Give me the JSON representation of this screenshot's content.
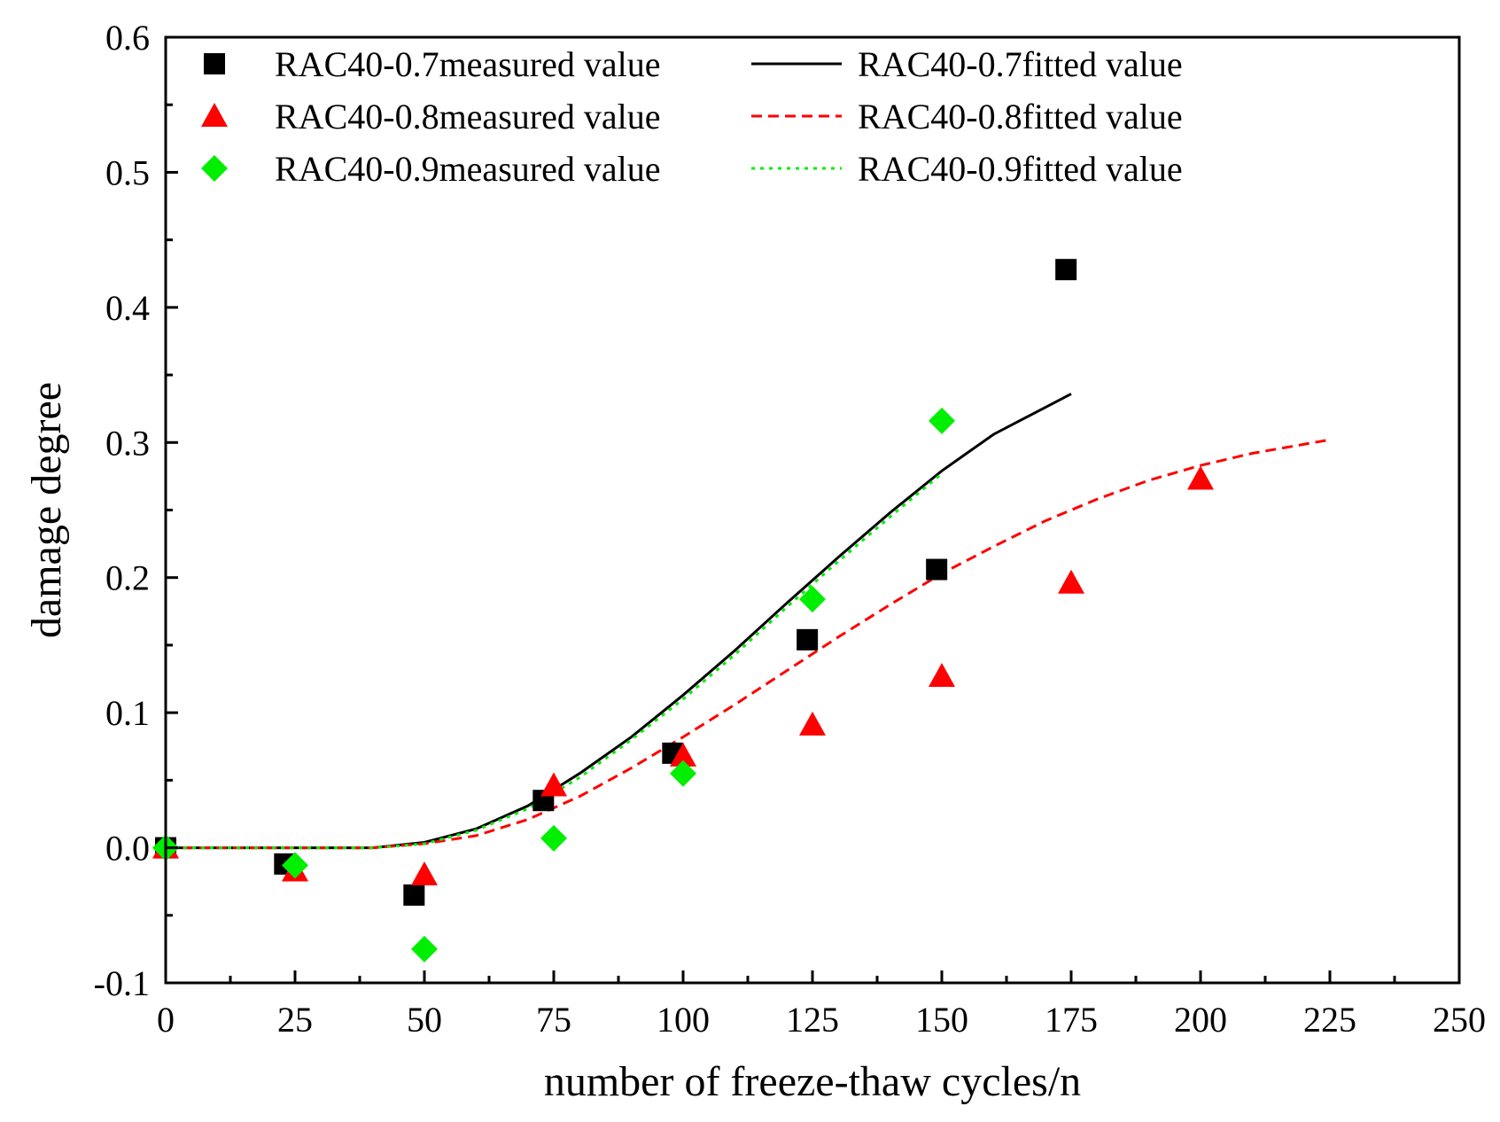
{
  "chart_data": {
    "type": "scatter",
    "title": "",
    "xlabel": "number of freeze-thaw cycles/n",
    "ylabel": "damage degree",
    "xlim": [
      0,
      250
    ],
    "ylim": [
      -0.1,
      0.6
    ],
    "xticks": [
      0,
      25,
      50,
      75,
      100,
      125,
      150,
      175,
      200,
      225,
      250
    ],
    "yticks": [
      -0.1,
      0.0,
      0.1,
      0.2,
      0.3,
      0.4,
      0.5,
      0.6
    ],
    "xtick_labels": [
      "0",
      "25",
      "50",
      "75",
      "100",
      "125",
      "150",
      "175",
      "200",
      "225",
      "250"
    ],
    "ytick_labels": [
      "-0.1",
      "0.0",
      "0.1",
      "0.2",
      "0.3",
      "0.4",
      "0.5",
      "0.6"
    ],
    "grid": false,
    "legend_position": "top-left",
    "series": [
      {
        "name": "RAC40-0.7measured value",
        "kind": "scatter",
        "marker": "square",
        "color": "#000000",
        "x": [
          0,
          23,
          48,
          73,
          98,
          124,
          149,
          174
        ],
        "y": [
          0.0,
          -0.012,
          -0.035,
          0.035,
          0.07,
          0.154,
          0.206,
          0.428
        ]
      },
      {
        "name": "RAC40-0.8measured value",
        "kind": "scatter",
        "marker": "triangle",
        "color": "#ff0000",
        "x": [
          0,
          25,
          50,
          75,
          100,
          125,
          150,
          175,
          200
        ],
        "y": [
          0.0,
          -0.017,
          -0.02,
          0.046,
          0.068,
          0.091,
          0.127,
          0.196,
          0.273
        ]
      },
      {
        "name": "RAC40-0.9measured value",
        "kind": "scatter",
        "marker": "diamond",
        "color": "#00ee00",
        "x": [
          0,
          25,
          50,
          75,
          100,
          125,
          150
        ],
        "y": [
          0.0,
          -0.013,
          -0.075,
          0.007,
          0.055,
          0.184,
          0.316
        ]
      },
      {
        "name": "RAC40-0.7fitted value",
        "kind": "line",
        "style": "solid",
        "color": "#000000",
        "x": [
          0,
          25,
          40,
          50,
          60,
          70,
          80,
          90,
          100,
          110,
          120,
          130,
          140,
          150,
          160,
          170,
          175
        ],
        "y": [
          0.0,
          0.0,
          0.0,
          0.004,
          0.014,
          0.031,
          0.055,
          0.082,
          0.113,
          0.146,
          0.181,
          0.215,
          0.248,
          0.279,
          0.306,
          0.326,
          0.336
        ]
      },
      {
        "name": "RAC40-0.8fitted value",
        "kind": "line",
        "style": "dashed",
        "color": "#ff0000",
        "x": [
          0,
          25,
          40,
          50,
          60,
          70,
          80,
          90,
          100,
          110,
          120,
          130,
          140,
          150,
          160,
          170,
          180,
          190,
          200,
          210,
          225
        ],
        "y": [
          0.0,
          0.0,
          0.0,
          0.003,
          0.009,
          0.021,
          0.038,
          0.059,
          0.082,
          0.106,
          0.131,
          0.156,
          0.18,
          0.203,
          0.223,
          0.242,
          0.258,
          0.272,
          0.283,
          0.292,
          0.302
        ]
      },
      {
        "name": "RAC40-0.9fitted value",
        "kind": "line",
        "style": "dotted",
        "color": "#00ee00",
        "x": [
          0,
          25,
          40,
          50,
          60,
          70,
          80,
          90,
          100,
          110,
          120,
          130,
          140,
          150
        ],
        "y": [
          0.0,
          0.0,
          0.0,
          0.003,
          0.013,
          0.029,
          0.052,
          0.08,
          0.11,
          0.143,
          0.178,
          0.212,
          0.245,
          0.277
        ]
      }
    ]
  }
}
